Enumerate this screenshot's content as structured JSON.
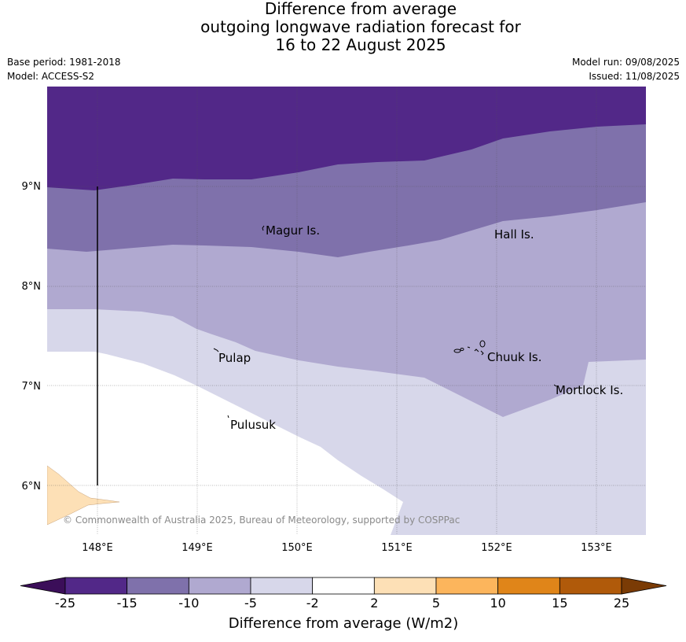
{
  "title": {
    "line1": "Difference from average",
    "line2": "outgoing longwave radiation forecast for",
    "line3": "16 to 22 August 2025"
  },
  "meta": {
    "base_period": "Base period: 1981-2018",
    "model": "Model: ACCESS-S2",
    "model_run": "Model run: 09/08/2025",
    "issued": "Issued: 11/08/2025"
  },
  "map": {
    "lon_labels": [
      "148°E",
      "149°E",
      "150°E",
      "151°E",
      "152°E",
      "153°E"
    ],
    "lat_labels": [
      "9°N",
      "8°N",
      "7°N",
      "6°N"
    ],
    "places": [
      "Magur Is.",
      "Hall Is.",
      "Pulap",
      "Chuuk Is.",
      "Mortlock Is.",
      "Pulusuk"
    ],
    "copyright": "© Commonwealth of Australia 2025, Bureau of Meteorology, supported by COSPPac",
    "colors": {
      "lt_-15": "#522888",
      "-15_-10": "#7f71ab",
      "-10_-5": "#b0a9d0",
      "-5_-2": "#d7d7ea",
      "-2_2": "#ffffff",
      "land": "#fde0b6"
    }
  },
  "colorbar": {
    "tick_labels": [
      "-25",
      "-15",
      "-10",
      "-5",
      "-2",
      "2",
      "5",
      "10",
      "15",
      "25"
    ],
    "colors": [
      "#3b0e59",
      "#522888",
      "#7f71ab",
      "#b0a9d0",
      "#d7d7ea",
      "#ffffff",
      "#fde0b6",
      "#fcb55c",
      "#e08519",
      "#b05a0a",
      "#7a3b05"
    ],
    "label": "Difference from average (W/m2)"
  }
}
